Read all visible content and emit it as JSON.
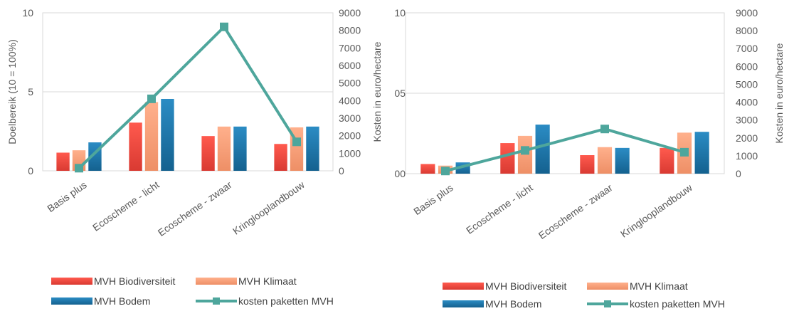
{
  "chart_data": [
    {
      "type": "bar",
      "categories": [
        "Basis plus",
        "Ecoscheme - licht",
        "Ecoscheme - zwaar",
        "Kringlooplandbouw"
      ],
      "series": [
        {
          "name": "MVH Biodiversiteit",
          "values": [
            1.15,
            3.05,
            2.2,
            1.7
          ],
          "color": "#e8453c"
        },
        {
          "name": "MVH Klimaat",
          "values": [
            1.3,
            4.35,
            2.8,
            2.75
          ],
          "color": "#f4a07a"
        },
        {
          "name": "MVH Bodem",
          "values": [
            1.8,
            4.55,
            2.8,
            2.8
          ],
          "color": "#1f77a8"
        },
        {
          "name": "kosten paketten MVH",
          "type": "line",
          "axis": "right",
          "values": [
            150,
            4100,
            8200,
            1650
          ],
          "color": "#4ea69c"
        }
      ],
      "ylabel": "Doelbereik (10 = 100%)",
      "ylim": [
        0,
        10
      ],
      "yticks": [
        "0",
        "5",
        "10"
      ],
      "y2label": "Kosten in euro/hectare",
      "y2lim": [
        0,
        9000
      ],
      "y2ticks": [
        "0",
        "1000",
        "2000",
        "3000",
        "4000",
        "5000",
        "6000",
        "7000",
        "8000",
        "9000"
      ],
      "grid": true,
      "legend_position": "bottom"
    },
    {
      "type": "bar",
      "categories": [
        "Basis plus",
        "Ecoscheme - licht",
        "Ecoscheme - zwaar",
        "Kringlooplandbouw"
      ],
      "series": [
        {
          "name": "MVH Biodiversiteit",
          "values": [
            0.6,
            1.9,
            1.15,
            1.6
          ],
          "color": "#e8453c"
        },
        {
          "name": "MVH Klimaat",
          "values": [
            0.5,
            2.35,
            1.65,
            2.55
          ],
          "color": "#f4a07a"
        },
        {
          "name": "MVH Bodem",
          "values": [
            0.7,
            3.05,
            1.6,
            2.6
          ],
          "color": "#1f77a8"
        },
        {
          "name": "kosten paketten MVH",
          "type": "line",
          "axis": "right",
          "values": [
            150,
            1300,
            2500,
            1200
          ],
          "color": "#4ea69c"
        }
      ],
      "ylabel": "",
      "ylim": [
        0,
        10
      ],
      "yticks": [
        "00",
        "05",
        "10"
      ],
      "y2label": "Kosten in euro/hectare",
      "y2lim": [
        0,
        9000
      ],
      "y2ticks": [
        "0",
        "1000",
        "2000",
        "3000",
        "4000",
        "5000",
        "6000",
        "7000",
        "8000",
        "9000"
      ],
      "grid": true,
      "legend_position": "bottom"
    }
  ]
}
